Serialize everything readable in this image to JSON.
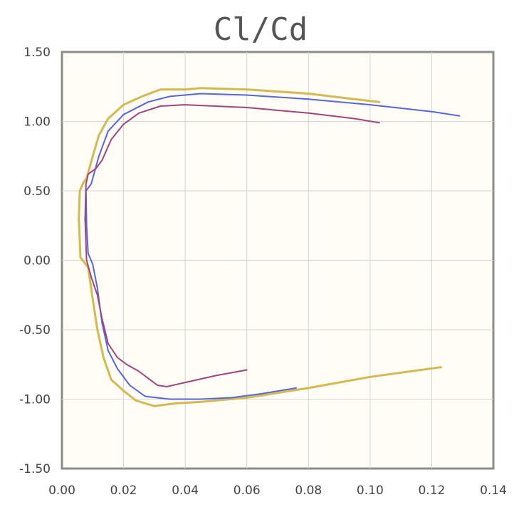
{
  "chart_data": {
    "type": "line",
    "title": "Cl/Cd",
    "xlabel": "",
    "ylabel": "",
    "xlim": [
      0,
      0.14
    ],
    "ylim": [
      -1.5,
      1.5
    ],
    "grid": true,
    "x_ticks": [
      "0.00",
      "0.02",
      "0.04",
      "0.06",
      "0.08",
      "0.10",
      "0.12",
      "0.14"
    ],
    "y_ticks": [
      "1.50",
      "1.00",
      "0.50",
      "0.00",
      "-0.50",
      "-1.00",
      "-1.50"
    ],
    "series": [
      {
        "color": "#d4b94f",
        "points": [
          [
            0.123,
            -0.77
          ],
          [
            0.1,
            -0.84
          ],
          [
            0.08,
            -0.92
          ],
          [
            0.06,
            -0.99
          ],
          [
            0.045,
            -1.02
          ],
          [
            0.037,
            -1.03
          ],
          [
            0.03,
            -1.05
          ],
          [
            0.024,
            -1.01
          ],
          [
            0.02,
            -0.94
          ],
          [
            0.016,
            -0.86
          ],
          [
            0.0135,
            -0.7
          ],
          [
            0.0115,
            -0.5
          ],
          [
            0.0098,
            -0.25
          ],
          [
            0.0085,
            -0.05
          ],
          [
            0.006,
            0.02
          ],
          [
            0.0055,
            0.3
          ],
          [
            0.0058,
            0.5
          ],
          [
            0.007,
            0.56
          ],
          [
            0.008,
            0.59
          ],
          [
            0.01,
            0.75
          ],
          [
            0.012,
            0.9
          ],
          [
            0.015,
            1.02
          ],
          [
            0.02,
            1.12
          ],
          [
            0.026,
            1.18
          ],
          [
            0.032,
            1.23
          ],
          [
            0.04,
            1.23
          ],
          [
            0.045,
            1.24
          ],
          [
            0.06,
            1.23
          ],
          [
            0.08,
            1.2
          ],
          [
            0.095,
            1.16
          ],
          [
            0.103,
            1.14
          ]
        ]
      },
      {
        "color": "#5566dd",
        "points": [
          [
            0.076,
            -0.92
          ],
          [
            0.065,
            -0.96
          ],
          [
            0.055,
            -0.99
          ],
          [
            0.045,
            -1.0
          ],
          [
            0.035,
            -1.0
          ],
          [
            0.027,
            -0.98
          ],
          [
            0.022,
            -0.9
          ],
          [
            0.018,
            -0.78
          ],
          [
            0.015,
            -0.65
          ],
          [
            0.013,
            -0.45
          ],
          [
            0.0115,
            -0.2
          ],
          [
            0.01,
            -0.03
          ],
          [
            0.0085,
            0.05
          ],
          [
            0.008,
            0.25
          ],
          [
            0.0078,
            0.5
          ],
          [
            0.0095,
            0.55
          ],
          [
            0.012,
            0.75
          ],
          [
            0.015,
            0.93
          ],
          [
            0.02,
            1.05
          ],
          [
            0.028,
            1.14
          ],
          [
            0.035,
            1.18
          ],
          [
            0.045,
            1.2
          ],
          [
            0.06,
            1.19
          ],
          [
            0.08,
            1.16
          ],
          [
            0.1,
            1.12
          ],
          [
            0.12,
            1.07
          ],
          [
            0.129,
            1.04
          ]
        ]
      },
      {
        "color": "#a0457a",
        "points": [
          [
            0.06,
            -0.79
          ],
          [
            0.05,
            -0.83
          ],
          [
            0.04,
            -0.88
          ],
          [
            0.034,
            -0.91
          ],
          [
            0.031,
            -0.9
          ],
          [
            0.028,
            -0.85
          ],
          [
            0.025,
            -0.8
          ],
          [
            0.021,
            -0.75
          ],
          [
            0.018,
            -0.7
          ],
          [
            0.015,
            -0.6
          ],
          [
            0.013,
            -0.42
          ],
          [
            0.0115,
            -0.25
          ],
          [
            0.0095,
            -0.12
          ],
          [
            0.008,
            0.0
          ],
          [
            0.0075,
            0.3
          ],
          [
            0.0078,
            0.55
          ],
          [
            0.0085,
            0.62
          ],
          [
            0.011,
            0.66
          ],
          [
            0.013,
            0.72
          ],
          [
            0.016,
            0.87
          ],
          [
            0.02,
            0.98
          ],
          [
            0.025,
            1.06
          ],
          [
            0.032,
            1.11
          ],
          [
            0.04,
            1.12
          ],
          [
            0.06,
            1.1
          ],
          [
            0.08,
            1.06
          ],
          [
            0.095,
            1.02
          ],
          [
            0.103,
            0.99
          ]
        ]
      }
    ]
  }
}
